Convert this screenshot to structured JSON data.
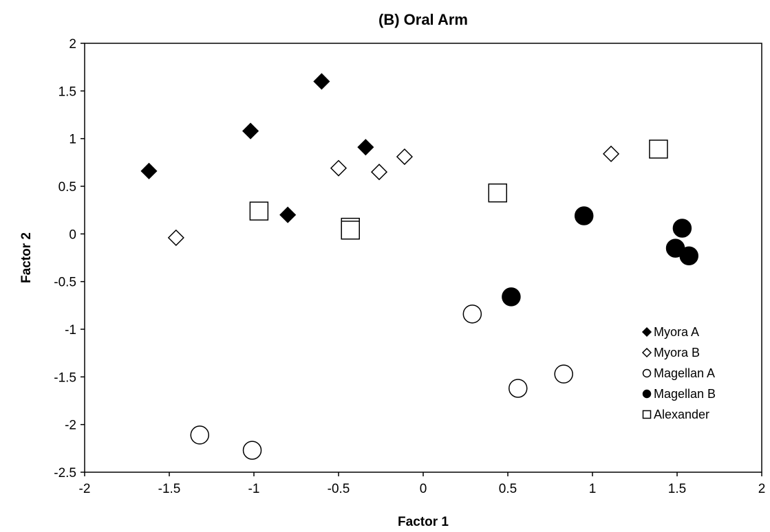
{
  "chart_data": {
    "type": "scatter",
    "title": "(B) Oral Arm",
    "xlabel": "Factor 1",
    "ylabel": "Factor 2",
    "xlim": [
      -2,
      2
    ],
    "ylim": [
      -2.5,
      2
    ],
    "xticks": [
      -2,
      -1.5,
      -1,
      -0.5,
      0,
      0.5,
      1,
      1.5,
      2
    ],
    "yticks": [
      -2.5,
      -2,
      -1.5,
      -1,
      -0.5,
      0,
      0.5,
      1,
      1.5,
      2
    ],
    "grid": false,
    "legend_position": "bottom-right",
    "series": [
      {
        "name": "Myora A",
        "marker": "diamond-filled",
        "points": [
          [
            -1.62,
            0.66
          ],
          [
            -1.02,
            1.08
          ],
          [
            -0.6,
            1.6
          ],
          [
            -0.34,
            0.91
          ],
          [
            -0.8,
            0.2
          ]
        ]
      },
      {
        "name": "Myora B",
        "marker": "diamond-open",
        "points": [
          [
            -1.46,
            -0.04
          ],
          [
            -0.5,
            0.69
          ],
          [
            -0.26,
            0.65
          ],
          [
            -0.11,
            0.81
          ],
          [
            1.11,
            0.84
          ]
        ]
      },
      {
        "name": "Magellan A",
        "marker": "circle-open",
        "points": [
          [
            -1.32,
            -2.11
          ],
          [
            -1.01,
            -2.27
          ],
          [
            0.29,
            -0.84
          ],
          [
            0.56,
            -1.62
          ],
          [
            0.83,
            -1.47
          ]
        ]
      },
      {
        "name": "Magellan B",
        "marker": "circle-filled",
        "points": [
          [
            0.52,
            -0.66
          ],
          [
            0.95,
            0.19
          ],
          [
            1.49,
            -0.15
          ],
          [
            1.53,
            0.06
          ],
          [
            1.57,
            -0.23
          ]
        ]
      },
      {
        "name": "Alexander",
        "marker": "square-open",
        "points": [
          [
            -0.97,
            0.24
          ],
          [
            -0.43,
            0.07
          ],
          [
            -0.43,
            0.04
          ],
          [
            0.44,
            0.43
          ],
          [
            1.39,
            0.89
          ]
        ]
      }
    ]
  }
}
